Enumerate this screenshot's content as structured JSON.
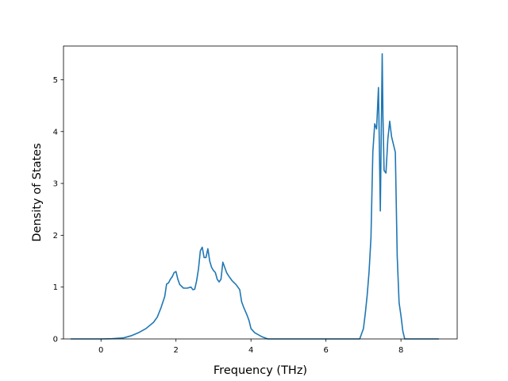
{
  "chart_data": {
    "type": "line",
    "title": "",
    "xlabel": "Frequency (THz)",
    "ylabel": "Density of States",
    "xlim": [
      -1.0,
      9.5
    ],
    "ylim": [
      0,
      5.65
    ],
    "x_ticks": [
      0,
      2,
      4,
      6,
      8
    ],
    "y_ticks": [
      0,
      1,
      2,
      3,
      4,
      5
    ],
    "grid": false,
    "legend": "none",
    "line_color": "#1f77b4",
    "series": [
      {
        "x": [
          -0.8,
          0.0,
          0.3,
          0.6,
          0.8,
          1.0,
          1.2,
          1.4,
          1.5,
          1.6,
          1.7,
          1.75,
          1.8,
          1.85,
          1.9,
          1.95,
          2.0,
          2.05,
          2.1,
          2.2,
          2.3,
          2.4,
          2.45,
          2.5,
          2.55,
          2.6,
          2.65,
          2.7,
          2.75,
          2.8,
          2.85,
          2.9,
          2.95,
          3.0,
          3.05,
          3.1,
          3.15,
          3.2,
          3.25,
          3.3,
          3.35,
          3.4,
          3.5,
          3.6,
          3.7,
          3.75,
          3.8,
          3.9,
          3.95,
          4.0,
          4.1,
          4.3,
          4.45,
          5.0,
          6.0,
          6.9,
          7.0,
          7.05,
          7.1,
          7.15,
          7.2,
          7.25,
          7.3,
          7.35,
          7.4,
          7.45,
          7.5,
          7.52,
          7.55,
          7.6,
          7.65,
          7.7,
          7.75,
          7.8,
          7.85,
          7.9,
          7.95,
          8.0,
          8.05,
          8.1,
          8.15,
          8.2,
          8.5,
          9.0
        ],
        "y": [
          0.0,
          0.0,
          0.005,
          0.02,
          0.06,
          0.12,
          0.2,
          0.32,
          0.42,
          0.6,
          0.82,
          1.06,
          1.08,
          1.15,
          1.2,
          1.28,
          1.3,
          1.15,
          1.05,
          0.98,
          0.98,
          1.0,
          0.95,
          0.96,
          1.12,
          1.35,
          1.7,
          1.77,
          1.57,
          1.57,
          1.74,
          1.5,
          1.38,
          1.32,
          1.28,
          1.15,
          1.1,
          1.15,
          1.48,
          1.38,
          1.28,
          1.22,
          1.12,
          1.05,
          0.95,
          0.72,
          0.62,
          0.45,
          0.35,
          0.2,
          0.12,
          0.04,
          0.0,
          0.0,
          0.0,
          0.0,
          0.2,
          0.5,
          0.85,
          1.3,
          1.95,
          3.6,
          4.15,
          4.05,
          4.85,
          2.47,
          5.5,
          4.3,
          3.25,
          3.2,
          3.85,
          4.2,
          3.9,
          3.75,
          3.6,
          1.6,
          0.7,
          0.45,
          0.15,
          0.0,
          0.0,
          0.0,
          0.0,
          0.0
        ]
      }
    ]
  }
}
